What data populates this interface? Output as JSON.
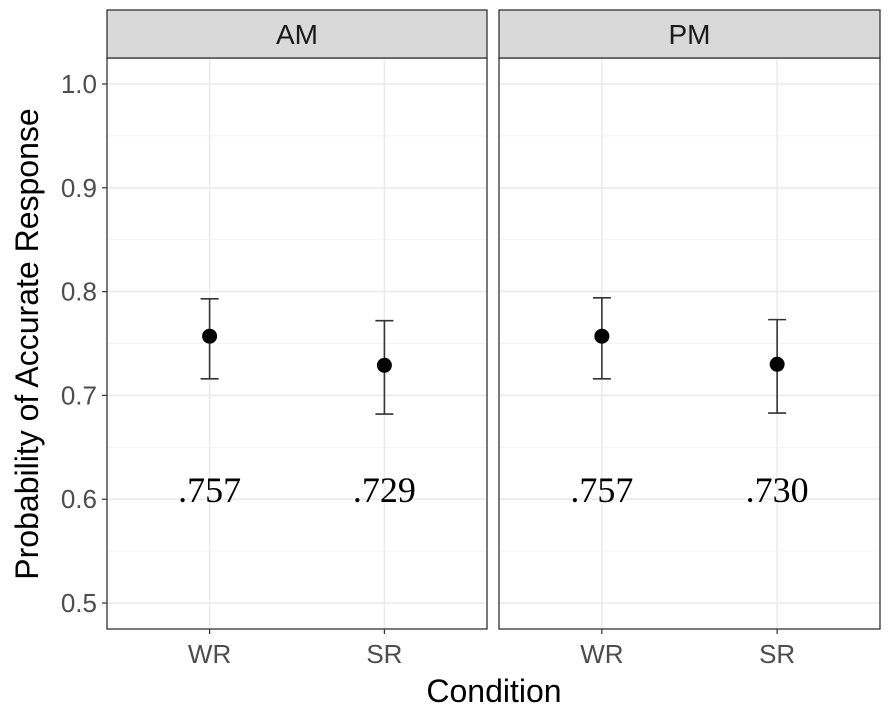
{
  "chart_data": {
    "type": "scatter",
    "xlabel": "Condition",
    "ylabel": "Probability of Accurate Response",
    "ylim": [
      0.475,
      1.025
    ],
    "yticks": [
      0.5,
      0.6,
      0.7,
      0.8,
      0.9,
      1.0
    ],
    "ytick_labels": [
      "0.5",
      "0.6",
      "0.7",
      "0.8",
      "0.9",
      "1.0"
    ],
    "categories": [
      "WR",
      "SR"
    ],
    "grid": true,
    "label_y": 0.61,
    "colors": {
      "panel_border": "#333333",
      "strip_fill": "#d9d9d9",
      "grid_major": "#ebebeb",
      "grid_minor": "#f4f4f4",
      "point": "#000000",
      "errorbar": "#333333"
    },
    "panels": [
      {
        "strip": "AM",
        "points": [
          {
            "x": "WR",
            "y": 0.757,
            "ymin": 0.716,
            "ymax": 0.793,
            "label": ".757"
          },
          {
            "x": "SR",
            "y": 0.729,
            "ymin": 0.682,
            "ymax": 0.772,
            "label": ".729"
          }
        ]
      },
      {
        "strip": "PM",
        "points": [
          {
            "x": "WR",
            "y": 0.757,
            "ymin": 0.716,
            "ymax": 0.794,
            "label": ".757"
          },
          {
            "x": "SR",
            "y": 0.73,
            "ymin": 0.683,
            "ymax": 0.773,
            "label": ".730"
          }
        ]
      }
    ]
  }
}
